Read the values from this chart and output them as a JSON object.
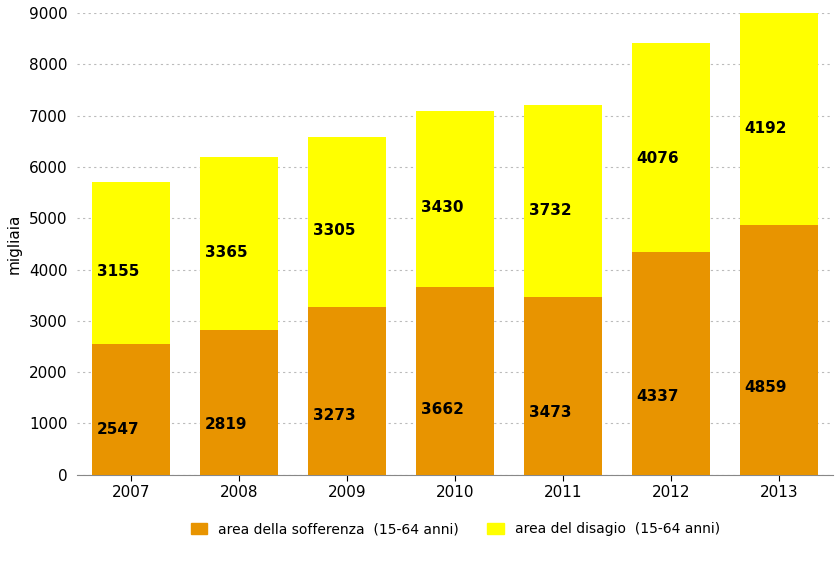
{
  "years": [
    "2007",
    "2008",
    "2009",
    "2010",
    "2011",
    "2012",
    "2013"
  ],
  "sofferenza": [
    2547,
    2819,
    3273,
    3662,
    3473,
    4337,
    4859
  ],
  "disagio": [
    3155,
    3365,
    3305,
    3430,
    3732,
    4076,
    4192
  ],
  "color_sofferenza": "#E89400",
  "color_disagio": "#FFFF00",
  "ylabel": "migliaia",
  "ylim": [
    0,
    9000
  ],
  "yticks": [
    0,
    1000,
    2000,
    3000,
    4000,
    5000,
    6000,
    7000,
    8000,
    9000
  ],
  "legend_sofferenza": "area della sofferenza  (15-64 anni)",
  "legend_disagio": "area del disagio  (15-64 anni)",
  "label_fontsize": 11,
  "tick_fontsize": 11,
  "bar_width": 0.72,
  "background_color": "#FFFFFF",
  "grid_color": "#BBBBBB"
}
